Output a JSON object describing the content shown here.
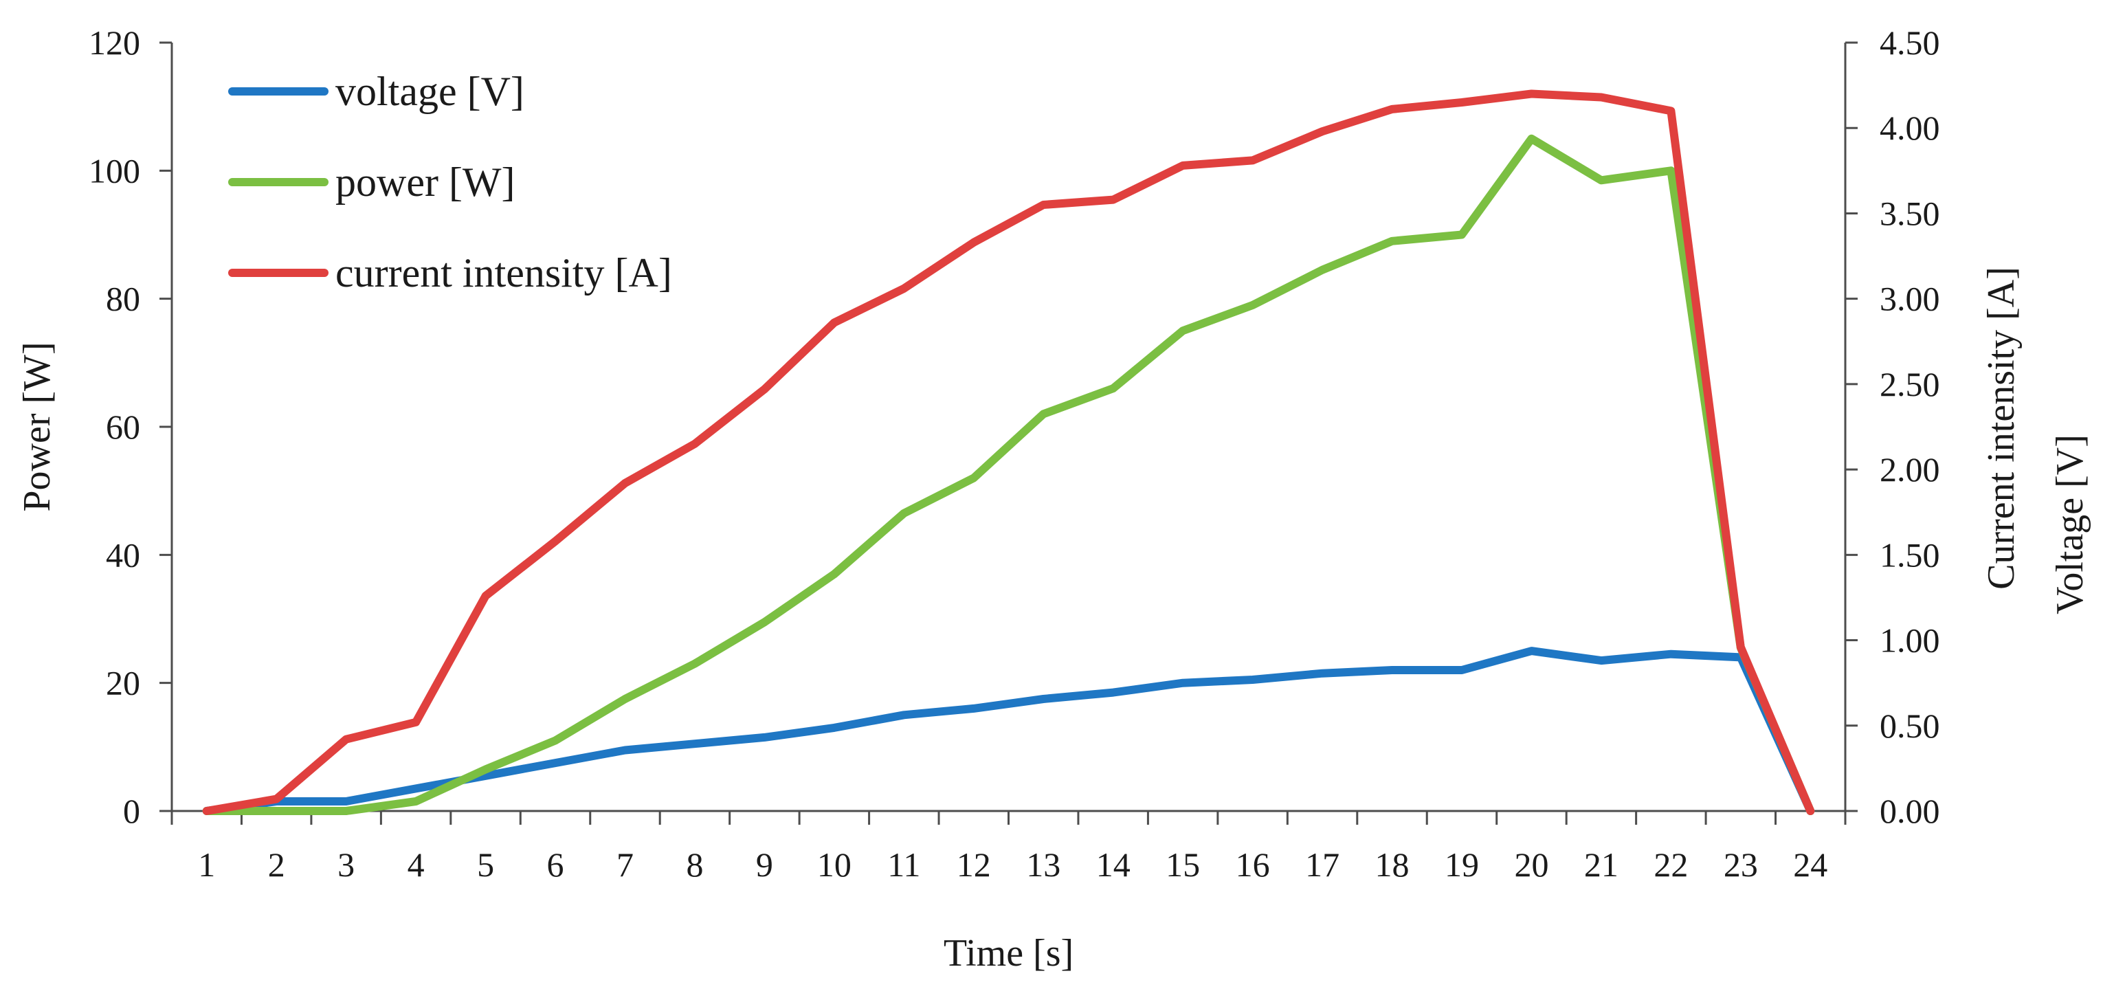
{
  "chart_data": {
    "type": "line",
    "x": [
      1,
      2,
      3,
      4,
      5,
      6,
      7,
      8,
      9,
      10,
      11,
      12,
      13,
      14,
      15,
      16,
      17,
      18,
      19,
      20,
      21,
      22,
      23,
      24
    ],
    "xlabel": "Time [s]",
    "y_left": {
      "label": "Power [W]",
      "ylim": [
        0,
        120
      ],
      "ticks": [
        0,
        20,
        40,
        60,
        80,
        100,
        120
      ],
      "tick_labels": [
        "0",
        "20",
        "40",
        "60",
        "80",
        "100",
        "120"
      ]
    },
    "y_right": {
      "label_top": "Current intensity [A]",
      "label_bottom": "Voltage  [V]",
      "ylim": [
        0,
        4.5
      ],
      "ticks": [
        0,
        0.5,
        1.0,
        1.5,
        2.0,
        2.5,
        3.0,
        3.5,
        4.0,
        4.5
      ],
      "tick_labels": [
        "0.00",
        "0.50",
        "1.00",
        "1.50",
        "2.00",
        "2.50",
        "3.00",
        "3.50",
        "4.00",
        "4.50"
      ]
    },
    "series": [
      {
        "name": "voltage [V]",
        "color": "#1f77c4",
        "axis": "left",
        "values": [
          0,
          1.5,
          1.5,
          3.5,
          5.5,
          7.5,
          9.5,
          10.5,
          11.5,
          13,
          15,
          16,
          17.5,
          18.5,
          20,
          20.5,
          21.5,
          22,
          22,
          25,
          23.5,
          24.5,
          24,
          0
        ]
      },
      {
        "name": "power [W]",
        "color": "#7bbf42",
        "axis": "left",
        "values": [
          0,
          0,
          0,
          1.5,
          6.5,
          11,
          17.5,
          23,
          29.5,
          37,
          46.5,
          52,
          62,
          66,
          75,
          79,
          84.5,
          89,
          90,
          105,
          98.5,
          100,
          25.5,
          0
        ]
      },
      {
        "name": "current intensity [A]",
        "color": "#e0403e",
        "axis": "right",
        "values": [
          0,
          0.07,
          0.42,
          0.52,
          1.26,
          1.58,
          1.92,
          2.15,
          2.47,
          2.86,
          3.06,
          3.33,
          3.55,
          3.58,
          3.78,
          3.81,
          3.98,
          4.11,
          4.15,
          4.2,
          4.18,
          4.1,
          0.96,
          0
        ]
      }
    ],
    "legend": "top-left"
  }
}
